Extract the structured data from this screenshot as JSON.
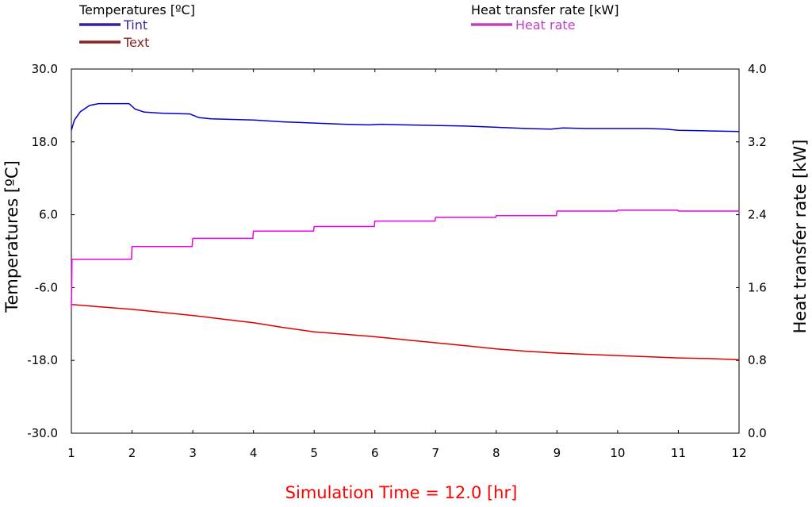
{
  "chart_data": {
    "type": "line",
    "left_legend_title": "Temperatures [ºC]",
    "right_legend_title": "Heat transfer rate [kW]",
    "ylabel_left": "Temperatures [ºC]",
    "ylabel_right": "Heat transfer rate [kW]",
    "simulation_time_label": "Simulation Time = 12.0 [hr]",
    "xlim": [
      1,
      12
    ],
    "ylim_left": [
      -30,
      30
    ],
    "ylim_right": [
      0,
      4
    ],
    "x_ticks": [
      1,
      2,
      3,
      4,
      5,
      6,
      7,
      8,
      9,
      10,
      11,
      12
    ],
    "x_tick_labels": [
      "1",
      "2",
      "3",
      "4",
      "5",
      "6",
      "7",
      "8",
      "9",
      "10",
      "11",
      "12"
    ],
    "y_left_ticks": [
      30,
      18,
      6,
      -6,
      -18,
      -30
    ],
    "y_left_tick_labels": [
      "30.0",
      "18.0",
      "6.0",
      "-6.0",
      "-18.0",
      "-30.0"
    ],
    "y_right_ticks": [
      4,
      3.2,
      2.4,
      1.6,
      0.8,
      0
    ],
    "y_right_tick_labels": [
      "4.0",
      "3.2",
      "2.4",
      "1.6",
      "0.8",
      "0.0"
    ],
    "series": [
      {
        "name": "Tint",
        "axis": "left",
        "color": "#0000cc",
        "legend_color": "#3a1ea0",
        "points": [
          [
            1.0,
            19.9
          ],
          [
            1.05,
            21.6
          ],
          [
            1.15,
            23.0
          ],
          [
            1.3,
            24.0
          ],
          [
            1.45,
            24.3
          ],
          [
            1.7,
            24.3
          ],
          [
            1.95,
            24.3
          ],
          [
            2.05,
            23.4
          ],
          [
            2.2,
            22.9
          ],
          [
            2.5,
            22.7
          ],
          [
            2.95,
            22.6
          ],
          [
            3.1,
            22.0
          ],
          [
            3.3,
            21.8
          ],
          [
            4.0,
            21.6
          ],
          [
            4.5,
            21.3
          ],
          [
            5.0,
            21.1
          ],
          [
            5.5,
            20.9
          ],
          [
            5.9,
            20.8
          ],
          [
            6.1,
            20.9
          ],
          [
            6.5,
            20.8
          ],
          [
            7.0,
            20.7
          ],
          [
            7.5,
            20.6
          ],
          [
            8.0,
            20.4
          ],
          [
            8.5,
            20.2
          ],
          [
            8.9,
            20.1
          ],
          [
            9.1,
            20.3
          ],
          [
            9.5,
            20.2
          ],
          [
            10.0,
            20.2
          ],
          [
            10.5,
            20.2
          ],
          [
            10.8,
            20.1
          ],
          [
            11.0,
            19.9
          ],
          [
            11.5,
            19.8
          ],
          [
            12.0,
            19.7
          ]
        ]
      },
      {
        "name": "Text",
        "axis": "left",
        "color": "#dd0000",
        "legend_color": "#8b2323",
        "points": [
          [
            1.0,
            -8.8
          ],
          [
            1.5,
            -9.2
          ],
          [
            2.0,
            -9.6
          ],
          [
            2.5,
            -10.1
          ],
          [
            3.0,
            -10.6
          ],
          [
            3.5,
            -11.2
          ],
          [
            4.0,
            -11.8
          ],
          [
            4.5,
            -12.6
          ],
          [
            5.0,
            -13.3
          ],
          [
            5.5,
            -13.7
          ],
          [
            6.0,
            -14.1
          ],
          [
            6.5,
            -14.6
          ],
          [
            7.0,
            -15.1
          ],
          [
            7.5,
            -15.6
          ],
          [
            8.0,
            -16.1
          ],
          [
            8.5,
            -16.5
          ],
          [
            9.0,
            -16.8
          ],
          [
            9.5,
            -17.0
          ],
          [
            10.0,
            -17.2
          ],
          [
            10.5,
            -17.4
          ],
          [
            11.0,
            -17.6
          ],
          [
            11.5,
            -17.7
          ],
          [
            12.0,
            -17.9
          ]
        ]
      },
      {
        "name": "Heat rate",
        "axis": "right",
        "color": "#ee00ee",
        "legend_color": "#c040c0",
        "points": [
          [
            1.0,
            1.37
          ],
          [
            1.01,
            1.91
          ],
          [
            1.99,
            1.91
          ],
          [
            2.0,
            2.05
          ],
          [
            2.99,
            2.05
          ],
          [
            3.0,
            2.14
          ],
          [
            3.99,
            2.14
          ],
          [
            4.0,
            2.22
          ],
          [
            4.99,
            2.22
          ],
          [
            5.0,
            2.27
          ],
          [
            5.99,
            2.27
          ],
          [
            6.0,
            2.33
          ],
          [
            6.99,
            2.33
          ],
          [
            7.0,
            2.37
          ],
          [
            7.99,
            2.37
          ],
          [
            8.0,
            2.39
          ],
          [
            8.99,
            2.39
          ],
          [
            9.0,
            2.44
          ],
          [
            9.99,
            2.44
          ],
          [
            10.0,
            2.45
          ],
          [
            10.99,
            2.45
          ],
          [
            11.0,
            2.44
          ],
          [
            12.0,
            2.44
          ]
        ]
      }
    ]
  }
}
